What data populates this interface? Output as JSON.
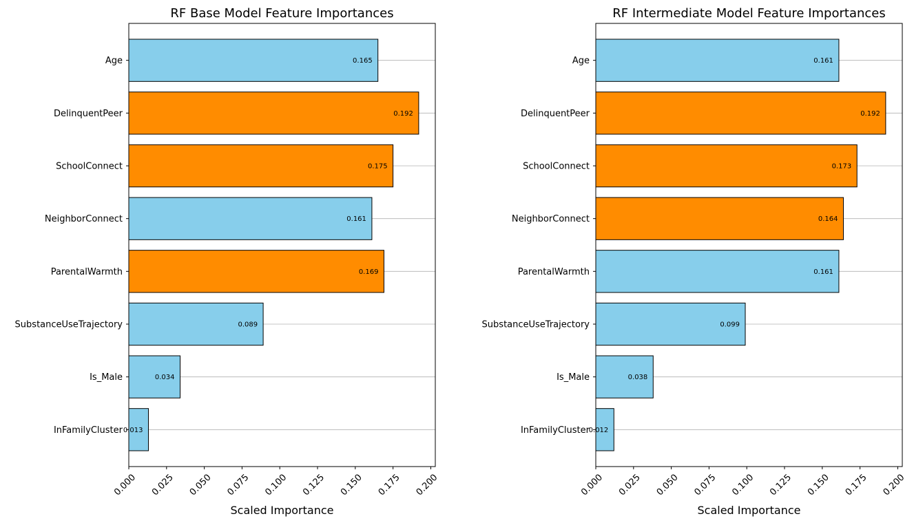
{
  "chart_data": [
    {
      "type": "bar",
      "orientation": "horizontal",
      "title": "RF Base Model Feature Importances",
      "xlabel": "Scaled Importance",
      "ylabel": "",
      "xlim": [
        0,
        0.203
      ],
      "xticks": [
        0,
        0.025,
        0.05,
        0.075,
        0.1,
        0.125,
        0.15,
        0.175,
        0.2
      ],
      "xtick_labels": [
        "0.000",
        "0.025",
        "0.050",
        "0.075",
        "0.100",
        "0.125",
        "0.150",
        "0.175",
        "0.200"
      ],
      "grid": "x-axis gridlines at each category",
      "categories": [
        "Age",
        "DelinquentPeer",
        "SchoolConnect",
        "NeighborConnect",
        "ParentalWarmth",
        "SubstanceUseTrajectory",
        "Is_Male",
        "InFamilyCluster"
      ],
      "values": [
        0.165,
        0.192,
        0.175,
        0.161,
        0.169,
        0.089,
        0.034,
        0.013
      ],
      "value_labels": [
        "0.165",
        "0.192",
        "0.175",
        "0.161",
        "0.169",
        "0.089",
        "0.034",
        "0.013"
      ],
      "highlighted": [
        false,
        true,
        true,
        false,
        true,
        false,
        false,
        false
      ]
    },
    {
      "type": "bar",
      "orientation": "horizontal",
      "title": "RF Intermediate Model Feature Importances",
      "xlabel": "Scaled Importance",
      "ylabel": "",
      "xlim": [
        0,
        0.203
      ],
      "xticks": [
        0,
        0.025,
        0.05,
        0.075,
        0.1,
        0.125,
        0.15,
        0.175,
        0.2
      ],
      "xtick_labels": [
        "0.000",
        "0.025",
        "0.050",
        "0.075",
        "0.100",
        "0.125",
        "0.150",
        "0.175",
        "0.200"
      ],
      "grid": "x-axis gridlines at each category",
      "categories": [
        "Age",
        "DelinquentPeer",
        "SchoolConnect",
        "NeighborConnect",
        "ParentalWarmth",
        "SubstanceUseTrajectory",
        "Is_Male",
        "InFamilyCluster"
      ],
      "values": [
        0.161,
        0.192,
        0.173,
        0.164,
        0.161,
        0.099,
        0.038,
        0.012
      ],
      "value_labels": [
        "0.161",
        "0.192",
        "0.173",
        "0.164",
        "0.161",
        "0.099",
        "0.038",
        "0.012"
      ],
      "highlighted": [
        false,
        true,
        true,
        true,
        false,
        false,
        false,
        false
      ]
    }
  ],
  "colors": {
    "default_bar": "#87CEEB",
    "highlight_bar": "#FF8C00",
    "bar_edge": "#000000",
    "grid": "#b0b0b0"
  }
}
